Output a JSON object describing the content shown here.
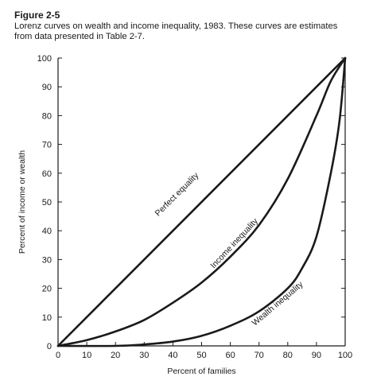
{
  "figure": {
    "label": "Figure 2-5",
    "caption_line1": "Lorenz curves on wealth and income inequality, 1983. These curves are estimates",
    "caption_line2": "from data presented in Table 2-7."
  },
  "chart_data": {
    "type": "line",
    "xlabel": "Percent of families",
    "ylabel": "Percent of income or wealth",
    "xlim": [
      0,
      100
    ],
    "ylim": [
      0,
      100
    ],
    "xticks": [
      0,
      10,
      20,
      30,
      40,
      50,
      60,
      70,
      80,
      90,
      100
    ],
    "yticks": [
      0,
      10,
      20,
      30,
      40,
      50,
      60,
      70,
      80,
      90,
      100
    ],
    "grid": false,
    "legend": "none",
    "series": [
      {
        "name": "Perfect equality",
        "x": [
          0,
          100
        ],
        "y": [
          0,
          100
        ],
        "color": "#1a1a1a"
      },
      {
        "name": "Income inequality",
        "x": [
          0,
          10,
          20,
          30,
          40,
          50,
          60,
          70,
          80,
          90,
          95,
          100
        ],
        "y": [
          0,
          2,
          5,
          9,
          15,
          22,
          31,
          42,
          58,
          80,
          92,
          100
        ],
        "color": "#1a1a1a"
      },
      {
        "name": "Wealth inequality",
        "x": [
          0,
          20,
          30,
          40,
          50,
          60,
          70,
          80,
          85,
          90,
          95,
          98,
          100
        ],
        "y": [
          0,
          0,
          0.5,
          1.5,
          3.5,
          7,
          12,
          20,
          27,
          38,
          60,
          78,
          100
        ],
        "color": "#1a1a1a"
      }
    ]
  }
}
